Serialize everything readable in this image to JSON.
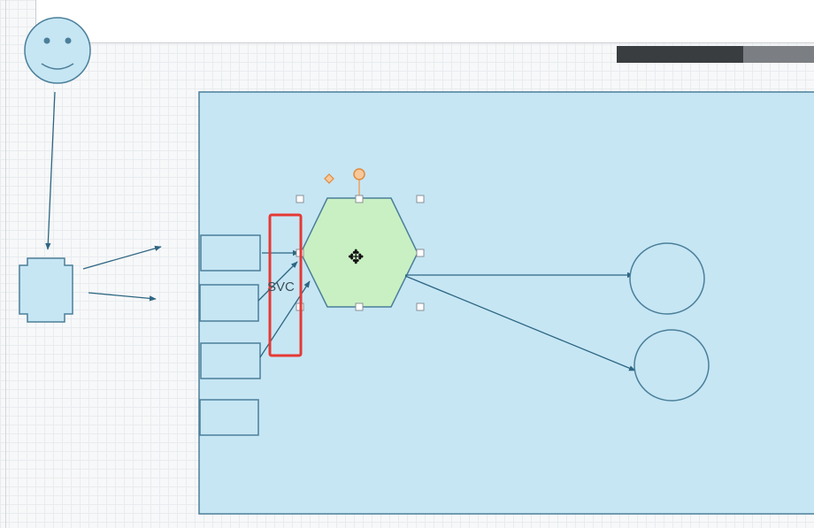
{
  "canvas": {
    "texts": {
      "svc_label": "SVC",
      "move_cursor_glyph": "✥"
    },
    "colors": {
      "container_fill": "#c6e6f4",
      "shape_stroke": "#4b7f99",
      "connector": "#2d6682",
      "selected_fill": "#c9f0c3",
      "handle_orange": "#f0a25e",
      "highlight_border": "#e53935",
      "status_bar": "#3a3d40"
    },
    "icons": [
      "smiley-face-icon",
      "move-cursor-icon"
    ],
    "selection": {
      "shape": "hexagon",
      "handles": 8,
      "rotation_handle": true
    }
  }
}
